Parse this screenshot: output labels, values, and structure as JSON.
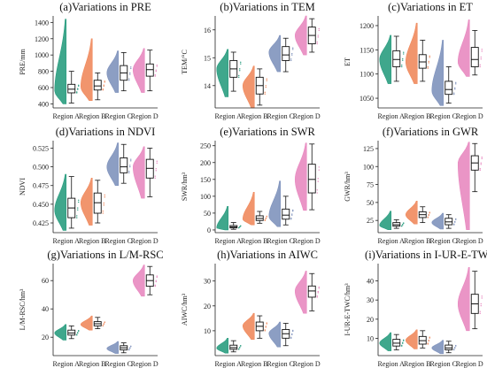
{
  "colors": {
    "Region A": "#2a9d80",
    "Region B": "#f08a5d",
    "Region C": "#8093bd",
    "Region D": "#e889c0"
  },
  "chart_data": [
    {
      "type": "violin",
      "title": "(a)Variations in PRE",
      "ylabel": "PRE/mm",
      "ylim": [
        350,
        1480
      ],
      "yticks": [
        400,
        600,
        800,
        1000,
        1200,
        1400
      ],
      "categories": [
        "Region A",
        "Region B",
        "Region C",
        "Region D"
      ],
      "series": [
        {
          "name": "Region A",
          "min": 410,
          "q1": 535,
          "median": 580,
          "q3": 640,
          "max": 800,
          "vmin": 400,
          "vmax": 1440,
          "mode": 560
        },
        {
          "name": "Region B",
          "min": 450,
          "q1": 570,
          "median": 620,
          "q3": 690,
          "max": 780,
          "vmin": 440,
          "vmax": 1200,
          "mode": 610
        },
        {
          "name": "Region C",
          "min": 560,
          "q1": 690,
          "median": 780,
          "q3": 870,
          "max": 1030,
          "vmin": 540,
          "vmax": 1050,
          "mode": 780
        },
        {
          "name": "Region D",
          "min": 560,
          "q1": 740,
          "median": 820,
          "q3": 890,
          "max": 1060,
          "vmin": 540,
          "vmax": 1080,
          "mode": 820
        }
      ]
    },
    {
      "type": "violin",
      "title": "(b)Variations in TEM",
      "ylabel": "TEM/°C",
      "ylim": [
        13.2,
        16.5
      ],
      "yticks": [
        14,
        15,
        16
      ],
      "categories": [
        "Region A",
        "Region B",
        "Region C",
        "Region D"
      ],
      "series": [
        {
          "name": "Region A",
          "min": 13.8,
          "q1": 14.3,
          "median": 14.6,
          "q3": 14.9,
          "max": 15.2,
          "vmin": 13.6,
          "vmax": 15.3,
          "mode": 14.6
        },
        {
          "name": "Region B",
          "min": 13.3,
          "q1": 13.7,
          "median": 14.0,
          "q3": 14.3,
          "max": 14.6,
          "vmin": 13.2,
          "vmax": 14.7,
          "mode": 14.0
        },
        {
          "name": "Region C",
          "min": 14.5,
          "q1": 14.9,
          "median": 15.1,
          "q3": 15.4,
          "max": 15.7,
          "vmin": 14.5,
          "vmax": 15.8,
          "mode": 15.2
        },
        {
          "name": "Region D",
          "min": 15.2,
          "q1": 15.5,
          "median": 15.8,
          "q3": 16.1,
          "max": 16.4,
          "vmin": 15.1,
          "vmax": 16.5,
          "mode": 15.8
        }
      ]
    },
    {
      "type": "violin",
      "title": "(c)Variations in ET",
      "ylabel": "ET",
      "ylim": [
        1030,
        1220
      ],
      "yticks": [
        1050,
        1100,
        1150,
        1200
      ],
      "categories": [
        "Region A",
        "Region B",
        "Region C",
        "Region D"
      ],
      "series": [
        {
          "name": "Region A",
          "min": 1085,
          "q1": 1115,
          "median": 1130,
          "q3": 1148,
          "max": 1178,
          "vmin": 1080,
          "vmax": 1180,
          "mode": 1130
        },
        {
          "name": "Region B",
          "min": 1085,
          "q1": 1112,
          "median": 1125,
          "q3": 1140,
          "max": 1170,
          "vmin": 1080,
          "vmax": 1205,
          "mode": 1125
        },
        {
          "name": "Region C",
          "min": 1040,
          "q1": 1058,
          "median": 1068,
          "q3": 1085,
          "max": 1115,
          "vmin": 1035,
          "vmax": 1170,
          "mode": 1065
        },
        {
          "name": "Region D",
          "min": 1098,
          "q1": 1115,
          "median": 1130,
          "q3": 1155,
          "max": 1190,
          "vmin": 1095,
          "vmax": 1212,
          "mode": 1125
        }
      ]
    },
    {
      "type": "violin",
      "title": "(d)Variations in NDVI",
      "ylabel": "NDVI",
      "ylim": [
        0.412,
        0.535
      ],
      "yticks": [
        0.425,
        0.45,
        0.475,
        0.5,
        0.525
      ],
      "tickformat": 3,
      "categories": [
        "Region A",
        "Region B",
        "Region C",
        "Region D"
      ],
      "series": [
        {
          "name": "Region A",
          "min": 0.418,
          "q1": 0.432,
          "median": 0.445,
          "q3": 0.458,
          "max": 0.487,
          "vmin": 0.415,
          "vmax": 0.49,
          "mode": 0.442
        },
        {
          "name": "Region B",
          "min": 0.425,
          "q1": 0.438,
          "median": 0.452,
          "q3": 0.465,
          "max": 0.482,
          "vmin": 0.422,
          "vmax": 0.485,
          "mode": 0.452
        },
        {
          "name": "Region C",
          "min": 0.478,
          "q1": 0.492,
          "median": 0.5,
          "q3": 0.512,
          "max": 0.53,
          "vmin": 0.475,
          "vmax": 0.532,
          "mode": 0.5
        },
        {
          "name": "Region D",
          "min": 0.46,
          "q1": 0.485,
          "median": 0.498,
          "q3": 0.51,
          "max": 0.525,
          "vmin": 0.458,
          "vmax": 0.527,
          "mode": 0.5
        }
      ]
    },
    {
      "type": "violin",
      "title": "(e)Variations in SWR",
      "ylabel": "SWR/hm³",
      "ylim": [
        -8,
        265
      ],
      "yticks": [
        0,
        50,
        100,
        150,
        200,
        250
      ],
      "categories": [
        "Region A",
        "Region B",
        "Region C",
        "Region D"
      ],
      "series": [
        {
          "name": "Region A",
          "min": 2,
          "q1": 6,
          "median": 9,
          "q3": 13,
          "max": 22,
          "vmin": 0,
          "vmax": 70,
          "mode": 6
        },
        {
          "name": "Region B",
          "min": 20,
          "q1": 28,
          "median": 34,
          "q3": 42,
          "max": 55,
          "vmin": 15,
          "vmax": 112,
          "mode": 32
        },
        {
          "name": "Region C",
          "min": 15,
          "q1": 32,
          "median": 44,
          "q3": 62,
          "max": 100,
          "vmin": 10,
          "vmax": 145,
          "mode": 40
        },
        {
          "name": "Region D",
          "min": 60,
          "q1": 110,
          "median": 150,
          "q3": 195,
          "max": 255,
          "vmin": 58,
          "vmax": 258,
          "mode": 150
        }
      ]
    },
    {
      "type": "violin",
      "title": "(f)Variations in GWR",
      "ylabel": "GWR/hm³",
      "ylim": [
        8,
        136
      ],
      "yticks": [
        25,
        50,
        75,
        100,
        125
      ],
      "categories": [
        "Region A",
        "Region B",
        "Region C",
        "Region D"
      ],
      "series": [
        {
          "name": "Region A",
          "min": 14,
          "q1": 17,
          "median": 19,
          "q3": 22,
          "max": 26,
          "vmin": 12,
          "vmax": 38,
          "mode": 18
        },
        {
          "name": "Region B",
          "min": 22,
          "q1": 29,
          "median": 33,
          "q3": 37,
          "max": 44,
          "vmin": 20,
          "vmax": 52,
          "mode": 33
        },
        {
          "name": "Region C",
          "min": 14,
          "q1": 19,
          "median": 23,
          "q3": 28,
          "max": 33,
          "vmin": 13,
          "vmax": 35,
          "mode": 22
        },
        {
          "name": "Region D",
          "min": 65,
          "q1": 95,
          "median": 105,
          "q3": 115,
          "max": 132,
          "vmin": 12,
          "vmax": 134,
          "mode": 105
        }
      ]
    },
    {
      "type": "violin",
      "title": "(g)Variations in L/M-RSC",
      "ylabel": "L/M-RSC/hm³",
      "ylim": [
        7,
        72
      ],
      "yticks": [
        20,
        40,
        60
      ],
      "categories": [
        "Region A",
        "Region B",
        "Region C",
        "Region D"
      ],
      "series": [
        {
          "name": "Region A",
          "min": 19,
          "q1": 21.5,
          "median": 23,
          "q3": 25,
          "max": 28,
          "vmin": 18,
          "vmax": 29,
          "mode": 23
        },
        {
          "name": "Region B",
          "min": 26,
          "q1": 28,
          "median": 29.5,
          "q3": 31,
          "max": 34,
          "vmin": 25,
          "vmax": 35,
          "mode": 29
        },
        {
          "name": "Region C",
          "min": 9,
          "q1": 11,
          "median": 12.5,
          "q3": 14,
          "max": 16,
          "vmin": 8.5,
          "vmax": 17,
          "mode": 12
        },
        {
          "name": "Region D",
          "min": 50,
          "q1": 56,
          "median": 60,
          "q3": 64,
          "max": 70,
          "vmin": 49,
          "vmax": 71,
          "mode": 60
        }
      ]
    },
    {
      "type": "violin",
      "title": "(h)Variations in AIWC",
      "ylabel": "AIWC/hm³",
      "ylim": [
        0,
        37
      ],
      "yticks": [
        10,
        20,
        30
      ],
      "categories": [
        "Region A",
        "Region B",
        "Region C",
        "Region D"
      ],
      "series": [
        {
          "name": "Region A",
          "min": 1.5,
          "q1": 2.5,
          "median": 3.2,
          "q3": 4.2,
          "max": 6,
          "vmin": 1,
          "vmax": 7,
          "mode": 3
        },
        {
          "name": "Region B",
          "min": 7,
          "q1": 10,
          "median": 11.8,
          "q3": 13.5,
          "max": 16,
          "vmin": 6.5,
          "vmax": 17,
          "mode": 12
        },
        {
          "name": "Region C",
          "min": 4,
          "q1": 7,
          "median": 8.8,
          "q3": 10.5,
          "max": 13,
          "vmin": 3.5,
          "vmax": 13.5,
          "mode": 9
        },
        {
          "name": "Region D",
          "min": 18,
          "q1": 23.5,
          "median": 26,
          "q3": 28,
          "max": 33,
          "vmin": 17,
          "vmax": 34,
          "mode": 26
        }
      ]
    },
    {
      "type": "violin",
      "title": "(i)Variations in I-UR-E-TWC",
      "ylabel": "I-UR-E-TWC/hm³",
      "ylim": [
        1,
        49
      ],
      "yticks": [
        10,
        20,
        30,
        40
      ],
      "categories": [
        "Region A",
        "Region B",
        "Region C",
        "Region D"
      ],
      "series": [
        {
          "name": "Region A",
          "min": 4,
          "q1": 6,
          "median": 7.5,
          "q3": 9.5,
          "max": 12,
          "vmin": 3.5,
          "vmax": 13,
          "mode": 7.5
        },
        {
          "name": "Region B",
          "min": 5,
          "q1": 7,
          "median": 8.8,
          "q3": 11,
          "max": 14,
          "vmin": 4.5,
          "vmax": 14.5,
          "mode": 9
        },
        {
          "name": "Region C",
          "min": 2.5,
          "q1": 4,
          "median": 5,
          "q3": 6.5,
          "max": 8.5,
          "vmin": 2,
          "vmax": 9,
          "mode": 5
        },
        {
          "name": "Region D",
          "min": 15,
          "q1": 23,
          "median": 28,
          "q3": 33,
          "max": 45,
          "vmin": 14,
          "vmax": 47,
          "mode": 28
        }
      ]
    }
  ]
}
